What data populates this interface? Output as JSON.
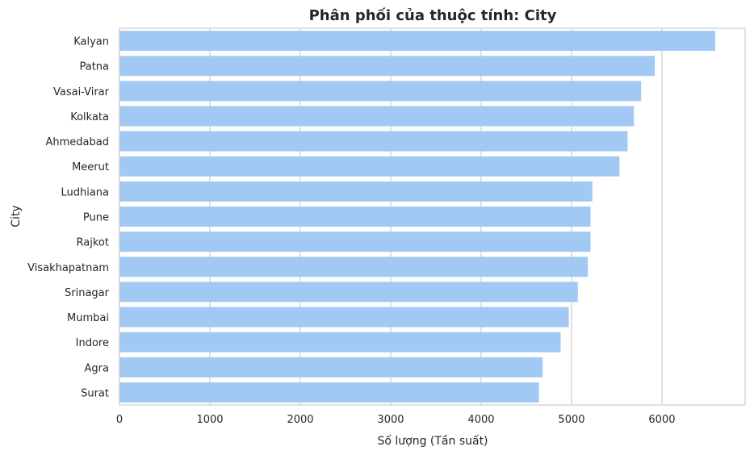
{
  "chart_data": {
    "type": "bar",
    "orientation": "horizontal",
    "title": "Phân phối của thuộc tính: City",
    "xlabel": "Số lượng (Tần suất)",
    "ylabel": "City",
    "categories": [
      "Kalyan",
      "Patna",
      "Vasai-Virar",
      "Kolkata",
      "Ahmedabad",
      "Meerut",
      "Ludhiana",
      "Pune",
      "Rajkot",
      "Visakhapatnam",
      "Srinagar",
      "Mumbai",
      "Indore",
      "Agra",
      "Surat"
    ],
    "values": [
      6590,
      5920,
      5770,
      5690,
      5620,
      5530,
      5230,
      5210,
      5210,
      5180,
      5070,
      4970,
      4880,
      4680,
      4640
    ],
    "xlim": [
      0,
      6920
    ],
    "xticks": [
      0,
      1000,
      2000,
      3000,
      4000,
      5000,
      6000
    ],
    "grid": "vertical",
    "bar_color": "#a1c9f4"
  }
}
